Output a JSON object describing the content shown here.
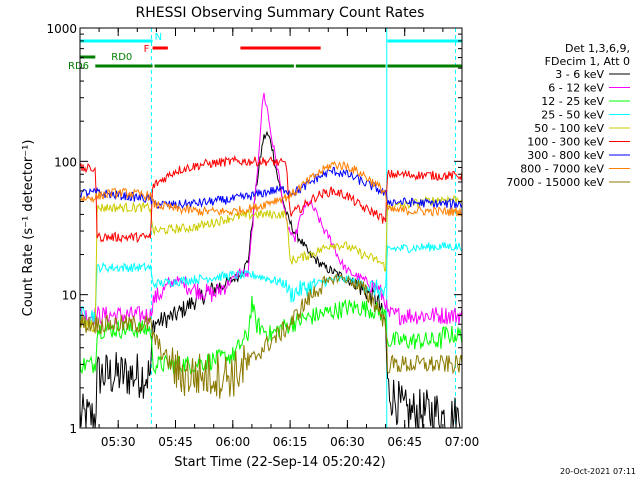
{
  "chart_data": {
    "type": "line",
    "title": "RHESSI Observing Summary Count Rates",
    "xlabel": "Start Time (22-Sep-14 05:20:42)",
    "ylabel": "Count Rate (s⁻¹ detector⁻¹)",
    "yscale": "log",
    "ylim": [
      1,
      1000
    ],
    "x_range_minutes": [
      0,
      100
    ],
    "x_ticks": [
      {
        "t": 10,
        "label": "05:30"
      },
      {
        "t": 25,
        "label": "05:45"
      },
      {
        "t": 40,
        "label": "06:00"
      },
      {
        "t": 55,
        "label": "06:15"
      },
      {
        "t": 70,
        "label": "06:30"
      },
      {
        "t": 85,
        "label": "06:45"
      },
      {
        "t": 100,
        "label": "07:00"
      }
    ],
    "y_ticks": [
      {
        "v": 1,
        "label": "1"
      },
      {
        "v": 10,
        "label": "10"
      },
      {
        "v": 100,
        "label": "100"
      },
      {
        "v": 1000,
        "label": "1000"
      }
    ],
    "legend_header": [
      "Det 1,3,6,9,",
      "FDecim 1, Att 0"
    ],
    "legend_position": "right",
    "series": [
      {
        "name": "3 - 6 keV",
        "color": "#000000",
        "t": [
          0,
          4,
          4.5,
          12,
          18.5,
          19,
          25,
          30,
          35,
          40,
          42,
          44,
          46,
          48,
          49,
          50,
          52,
          54,
          56,
          58,
          60,
          62,
          64,
          66,
          68,
          70,
          72,
          74,
          76,
          78,
          80,
          80.5,
          85,
          90,
          94.5,
          95,
          100
        ],
        "v": [
          1.2,
          1.2,
          2.5,
          2.5,
          2.5,
          6,
          7,
          9,
          11,
          13,
          14,
          18,
          60,
          150,
          160,
          140,
          70,
          40,
          30,
          25,
          20,
          18,
          16,
          15,
          14,
          13,
          12,
          11,
          10,
          9,
          6,
          2,
          1.3,
          1.3,
          1.3,
          1.2,
          1.2
        ]
      },
      {
        "name": "6 - 12 keV",
        "color": "#ff00ff",
        "t": [
          0,
          4,
          4.5,
          12,
          18.5,
          19,
          25,
          30,
          35,
          40,
          42,
          44,
          46,
          48,
          49,
          50,
          52,
          54,
          56,
          58,
          60,
          62,
          64,
          66,
          68,
          70,
          72,
          74,
          76,
          78,
          80,
          80.5,
          85,
          90,
          94.5,
          95,
          100
        ],
        "v": [
          7,
          7,
          7,
          7,
          7,
          9,
          13,
          11,
          10,
          13,
          15,
          14,
          60,
          330,
          250,
          160,
          80,
          35,
          25,
          40,
          50,
          40,
          30,
          25,
          18,
          15,
          14,
          13,
          12,
          11,
          9,
          7,
          7,
          7,
          7,
          7,
          7
        ]
      },
      {
        "name": "12 - 25 keV",
        "color": "#00ff00",
        "t": [
          0,
          4,
          4.5,
          18.5,
          19,
          30,
          40,
          44,
          45,
          46,
          50,
          52,
          55,
          58,
          62,
          66,
          70,
          74,
          78,
          80,
          80.5,
          94.5,
          95,
          100
        ],
        "v": [
          3,
          3,
          5.5,
          5.5,
          3,
          3,
          3.5,
          5,
          9,
          6,
          5,
          5.5,
          6,
          6.5,
          7,
          7.5,
          8,
          8,
          7.5,
          7,
          4.5,
          4.5,
          5,
          5
        ]
      },
      {
        "name": "25 - 50 keV",
        "color": "#00ffff",
        "t": [
          0,
          4,
          4.5,
          18.5,
          19,
          30,
          40,
          46,
          50,
          54,
          55,
          58,
          62,
          66,
          70,
          74,
          78,
          80,
          80.5,
          94.5,
          95,
          100
        ],
        "v": [
          7,
          7,
          16,
          16,
          12,
          13,
          14,
          14,
          13,
          12,
          10,
          11,
          12,
          13,
          13,
          12,
          11,
          10,
          22,
          23,
          23,
          23
        ]
      },
      {
        "name": "50 - 100 keV",
        "color": "#cccc00",
        "t": [
          0,
          4,
          4.5,
          18.5,
          19,
          30,
          40,
          46,
          50,
          54,
          55,
          58,
          62,
          66,
          70,
          74,
          78,
          80,
          80.5,
          94.5,
          95,
          100
        ],
        "v": [
          6,
          6,
          45,
          45,
          30,
          32,
          38,
          40,
          40,
          40,
          18,
          19,
          21,
          24,
          23,
          20,
          18,
          16,
          45,
          52,
          52,
          52
        ]
      },
      {
        "name": "100 - 300 keV",
        "color": "#ff0000",
        "t": [
          0,
          4,
          4.5,
          18.5,
          19,
          25,
          32,
          40,
          46,
          50,
          54,
          55,
          58,
          62,
          66,
          70,
          74,
          78,
          80,
          80.5,
          94.5,
          95,
          100
        ],
        "v": [
          88,
          88,
          27,
          27,
          65,
          85,
          95,
          100,
          100,
          100,
          95,
          40,
          45,
          55,
          60,
          55,
          45,
          40,
          35,
          80,
          78,
          78,
          78
        ]
      },
      {
        "name": "300 - 800 keV",
        "color": "#0000ff",
        "t": [
          0,
          4,
          4.5,
          12,
          18.5,
          19,
          25,
          32,
          40,
          46,
          50,
          54,
          55,
          58,
          62,
          66,
          70,
          74,
          78,
          80,
          80.5,
          94.5,
          95,
          100
        ],
        "v": [
          58,
          58,
          58,
          55,
          52,
          48,
          47,
          49,
          52,
          56,
          60,
          62,
          58,
          62,
          75,
          85,
          80,
          70,
          62,
          56,
          50,
          48,
          48,
          48
        ]
      },
      {
        "name": "800 - 7000 keV",
        "color": "#ff8000",
        "t": [
          0,
          4,
          8,
          12,
          18.5,
          19,
          25,
          32,
          40,
          46,
          50,
          55,
          58,
          62,
          66,
          70,
          74,
          78,
          80,
          80.5,
          94.5,
          95,
          100
        ],
        "v": [
          52,
          54,
          58,
          58,
          55,
          48,
          44,
          42,
          42,
          45,
          50,
          55,
          65,
          80,
          95,
          92,
          80,
          65,
          58,
          43,
          42,
          42,
          42
        ]
      },
      {
        "name": "7000 - 15000 keV",
        "color": "#8b7a00",
        "t": [
          0,
          4,
          4.5,
          18.5,
          19,
          22,
          26,
          30,
          40,
          44,
          48,
          52,
          55,
          58,
          62,
          66,
          68,
          70,
          74,
          78,
          80,
          80.5,
          94.5,
          95,
          100
        ],
        "v": [
          6,
          6,
          6,
          6,
          5,
          3.5,
          2.5,
          2.5,
          2.5,
          3,
          4,
          5,
          6,
          8,
          11,
          13,
          13.5,
          13,
          11,
          8,
          6,
          3,
          3,
          3,
          3
        ]
      }
    ],
    "state_bars": {
      "N": {
        "color": "#00ffff",
        "segments": [
          [
            0,
            19
          ],
          [
            80.5,
            100
          ]
        ]
      },
      "F": {
        "color": "#ff0000",
        "segments": [
          [
            19,
            23
          ],
          [
            42,
            63
          ]
        ]
      },
      "RD0": {
        "color": "#008000",
        "segments": [
          [
            0,
            4
          ]
        ]
      },
      "RD6": {
        "color": "#008000",
        "segments": [
          [
            4,
            19
          ],
          [
            19.5,
            56
          ],
          [
            56.5,
            80
          ],
          [
            80.5,
            100
          ]
        ]
      }
    },
    "vlines": [
      {
        "t": 0,
        "color": "#00ffff",
        "style": "solid"
      },
      {
        "t": 18.7,
        "color": "#00ffff",
        "style": "dashed"
      },
      {
        "t": 80.3,
        "color": "#00ffff",
        "style": "solid"
      },
      {
        "t": 98.3,
        "color": "#00ffff",
        "style": "dashed"
      }
    ]
  },
  "footer": {
    "timestamp": "20-Oct-2021 07:11"
  }
}
